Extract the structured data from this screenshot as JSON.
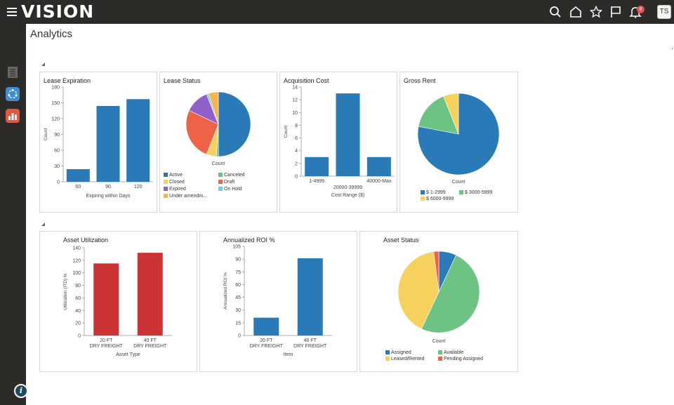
{
  "app": {
    "brand": "VISION",
    "page_title": "Analytics",
    "user_initials": "TS",
    "notification_count": "8"
  },
  "icons": {
    "menu": "hamburger-menu-icon",
    "search": "search-icon",
    "home": "home-icon",
    "favorites": "star-icon",
    "flag": "flag-icon",
    "notifications": "bell-icon",
    "rail": [
      "document-list-icon",
      "workflow-icon",
      "analytics-chart-icon"
    ],
    "info": "info-icon"
  },
  "colors": {
    "blue": "#2a7ab7",
    "green": "#6cc383",
    "yellow": "#f6d15e",
    "purple": "#8e62c8",
    "orange_red": "#ee6348",
    "cyan": "#75cdd6",
    "light_orange": "#f5b552",
    "red": "#cb3334"
  },
  "panels": {
    "lease_expiration": {
      "title": "Lease Expiration",
      "xlabel": "Expiring within Days",
      "ylabel": "Count"
    },
    "lease_status": {
      "title": "Lease Status",
      "caption": "Count"
    },
    "acquisition_cost": {
      "title": "Acquisition Cost",
      "xlabel": "Cost Range ($)",
      "ylabel": "Count"
    },
    "gross_rent": {
      "title": "Gross Rent",
      "caption": "Count"
    },
    "asset_utilization": {
      "title": "Asset Utilization",
      "xlabel": "Asset Type",
      "ylabel": "Utilization (ITD) %"
    },
    "annualized_roi": {
      "title": "Annualized ROI %",
      "xlabel": "Item",
      "ylabel": "Annualized ROI %"
    },
    "asset_status": {
      "title": "Asset Status",
      "caption": "Count"
    }
  },
  "chart_data": [
    {
      "id": "lease_expiration",
      "type": "bar",
      "title": "Lease Expiration",
      "xlabel": "Expiring within Days",
      "ylabel": "Count",
      "categories": [
        "60",
        "90",
        "120"
      ],
      "values": [
        24,
        144,
        157
      ],
      "ylim": [
        0,
        180
      ],
      "yticks": [
        "0",
        "30",
        "60",
        "90",
        "120",
        "150",
        "180"
      ]
    },
    {
      "id": "lease_status",
      "type": "pie",
      "title": "Lease Status",
      "labels": [
        "Active",
        "Canceled",
        "Closed",
        "Draft",
        "Expired",
        "On Hold",
        "Under amendm..."
      ],
      "values": [
        50,
        1,
        5,
        26,
        12,
        1,
        5
      ],
      "legend": [
        "Active",
        "Canceled",
        "Closed",
        "Draft",
        "Expired",
        "On Hold",
        "Under amendm..."
      ]
    },
    {
      "id": "acquisition_cost",
      "type": "bar",
      "title": "Acquisition Cost",
      "xlabel": "Cost Range ($)",
      "ylabel": "Count",
      "categories": [
        "1-4999",
        "20000-39999",
        "40000-Max"
      ],
      "values": [
        3,
        13,
        3
      ],
      "ylim": [
        0,
        14
      ],
      "yticks": [
        "0",
        "2",
        "4",
        "6",
        "8",
        "10",
        "12",
        "14"
      ]
    },
    {
      "id": "gross_rent",
      "type": "pie",
      "title": "Gross Rent",
      "labels": [
        "$ 1-2999",
        "$ 3000-5999",
        "$ 6000-9999"
      ],
      "values": [
        78,
        16,
        6
      ],
      "legend": [
        "$ 1-2999",
        "$ 3000-5999",
        "$ 6000-9999"
      ]
    },
    {
      "id": "asset_utilization",
      "type": "bar",
      "title": "Asset Utilization",
      "xlabel": "Asset Type",
      "ylabel": "Utilization (ITD) %",
      "categories": [
        "20 FT DRY FREIGHT",
        "40 FT DRY FREIGHT"
      ],
      "values": [
        115,
        132
      ],
      "ylim": [
        0,
        140
      ],
      "yticks": [
        "0",
        "20",
        "40",
        "60",
        "80",
        "100",
        "120",
        "140"
      ]
    },
    {
      "id": "annualized_roi",
      "type": "bar",
      "title": "Annualized ROI %",
      "xlabel": "Item",
      "ylabel": "Annualized ROI %",
      "categories": [
        "20 FT DRY FREIGHT",
        "40 FT DRY FREIGHT"
      ],
      "values": [
        21,
        91
      ],
      "ylim": [
        0,
        105
      ],
      "yticks": [
        "0",
        "15",
        "30",
        "45",
        "60",
        "75",
        "90",
        "105"
      ]
    },
    {
      "id": "asset_status",
      "type": "pie",
      "title": "Asset Status",
      "labels": [
        "Assigned",
        "Available",
        "Leased/Rented",
        "Pending Assigned"
      ],
      "values": [
        7,
        50,
        41,
        2
      ],
      "legend": [
        "Assigned",
        "Available",
        "Leased/Rented",
        "Pending Assigned"
      ]
    }
  ]
}
